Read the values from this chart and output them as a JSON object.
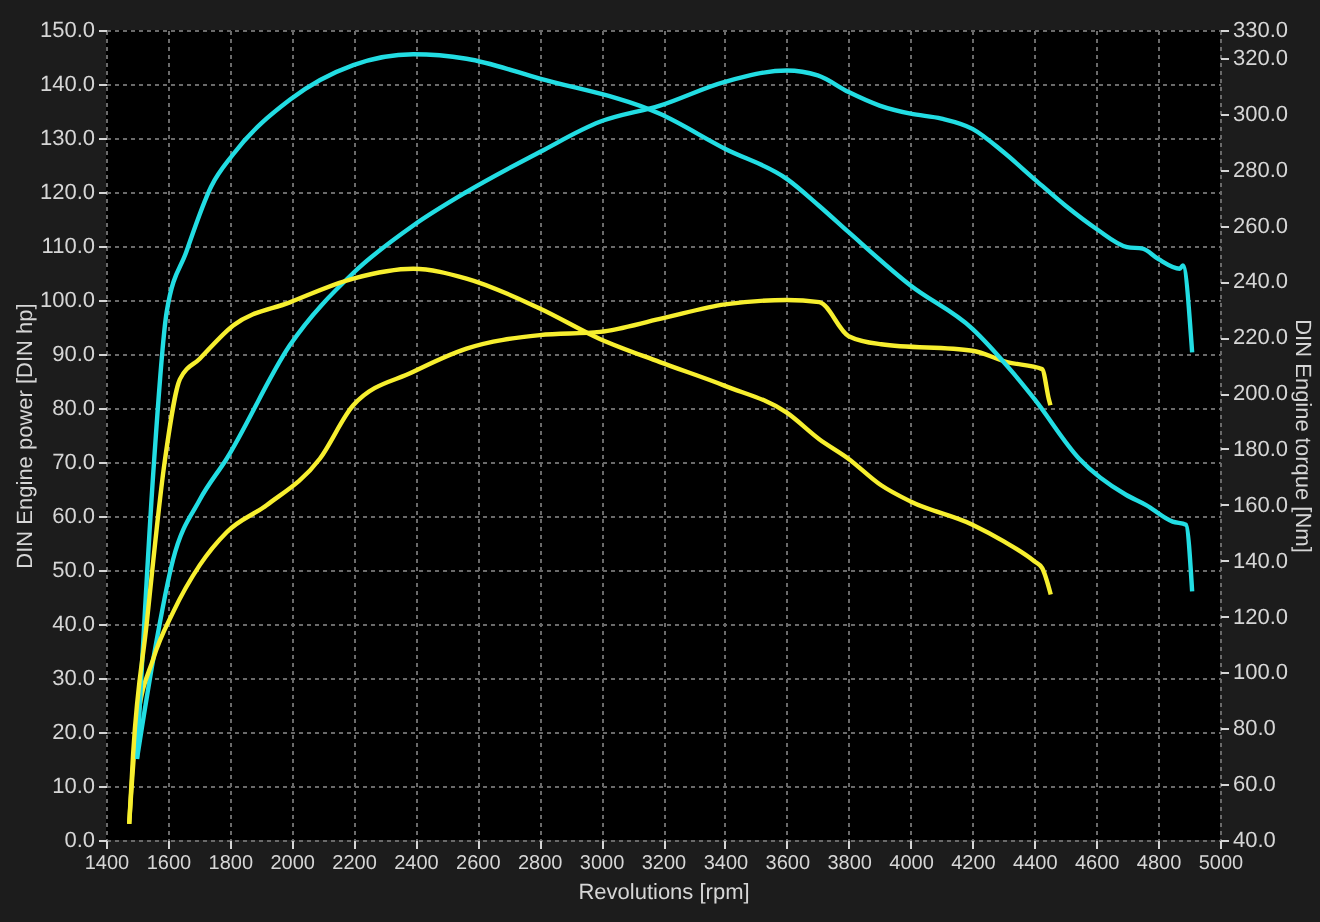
{
  "chart_data": {
    "type": "line",
    "xlabel": "Revolutions [rpm]",
    "ylabel": "DIN Engine power [DIN hp]",
    "y2label": "DIN Engine torque [Nm]",
    "xlim": [
      1400,
      5000
    ],
    "xticks": [
      1400,
      1600,
      1800,
      2000,
      2200,
      2400,
      2600,
      2800,
      3000,
      3200,
      3400,
      3600,
      3800,
      4000,
      4200,
      4400,
      4600,
      4800,
      5000
    ],
    "ylim": [
      0,
      150
    ],
    "yticks": [
      {
        "value": 0,
        "label": "0.0"
      },
      {
        "value": 10,
        "label": "10.0"
      },
      {
        "value": 20,
        "label": "20.0"
      },
      {
        "value": 30,
        "label": "30.0"
      },
      {
        "value": 40,
        "label": "40.0"
      },
      {
        "value": 50,
        "label": "50.0"
      },
      {
        "value": 60,
        "label": "60.0"
      },
      {
        "value": 70,
        "label": "70.0"
      },
      {
        "value": 80,
        "label": "80.0"
      },
      {
        "value": 90,
        "label": "90.0"
      },
      {
        "value": 100,
        "label": "100.0"
      },
      {
        "value": 110,
        "label": "110.0"
      },
      {
        "value": 120,
        "label": "120.0"
      },
      {
        "value": 130,
        "label": "130.0"
      },
      {
        "value": 140,
        "label": "140.0"
      },
      {
        "value": 150,
        "label": "150.0"
      }
    ],
    "y2lim": [
      40,
      330
    ],
    "y2ticks": [
      {
        "value": 40,
        "label": "40.0"
      },
      {
        "value": 60,
        "label": "60.0"
      },
      {
        "value": 80,
        "label": "80.0"
      },
      {
        "value": 100,
        "label": "100.0"
      },
      {
        "value": 120,
        "label": "120.0"
      },
      {
        "value": 140,
        "label": "140.0"
      },
      {
        "value": 160,
        "label": "160.0"
      },
      {
        "value": 180,
        "label": "180.0"
      },
      {
        "value": 200,
        "label": "200.0"
      },
      {
        "value": 220,
        "label": "220.0"
      },
      {
        "value": 240,
        "label": "240.0"
      },
      {
        "value": 260,
        "label": "260.0"
      },
      {
        "value": 280,
        "label": "280.0"
      },
      {
        "value": 300,
        "label": "300.0"
      },
      {
        "value": 320,
        "label": "320.0"
      },
      {
        "value": 330,
        "label": "330.0"
      }
    ],
    "grid": true,
    "series": [
      {
        "color": "#22dde3",
        "x": [
          1500,
          1553,
          1617,
          1703,
          1790,
          1994,
          2199,
          2393,
          2565,
          2802,
          2996,
          3190,
          3400,
          3600,
          3700,
          3800,
          3900,
          4000,
          4100,
          4200,
          4300,
          4400,
          4500,
          4600,
          4700,
          4750,
          4800,
          4870,
          4880,
          4910
        ],
        "values": [
          15,
          33.6,
          52,
          63,
          70.6,
          91.6,
          105,
          113.8,
          120,
          127.4,
          133,
          136,
          140.4,
          142.5,
          141.6,
          138.5,
          136,
          134.5,
          133.6,
          131.7,
          127.4,
          122.4,
          117.5,
          113.2,
          109.8,
          109.5,
          107.6,
          105.8,
          106.4,
          90.3
        ]
      },
      {
        "color": "#22dde3",
        "axis": "y2",
        "x": [
          1500,
          1555,
          1596,
          1660,
          1740,
          1811,
          1994,
          2199,
          2393,
          2565,
          2802,
          3190,
          3400,
          3600,
          3705,
          3800,
          4000,
          4200,
          4330,
          4400,
          4545,
          4696,
          4760,
          4847,
          4890,
          4910
        ],
        "values": [
          69,
          175,
          229,
          250.7,
          274,
          285.5,
          305,
          317.4,
          321.3,
          319.7,
          312.6,
          300,
          287.5,
          276.7,
          267,
          257.6,
          238.5,
          223,
          207.4,
          197.9,
          176.5,
          163.6,
          160,
          154,
          152.9,
          129
        ]
      },
      {
        "color": "#f7ef2f",
        "x": [
          1475,
          1499,
          1553,
          1617,
          1703,
          1790,
          1919,
          2091,
          2199,
          2393,
          2565,
          2802,
          2996,
          3190,
          3400,
          3600,
          3705,
          3800,
          3905,
          4200,
          4312,
          4425,
          4447,
          4452
        ],
        "values": [
          3,
          21.2,
          33.6,
          42.2,
          50.9,
          57,
          62,
          70.6,
          80.5,
          86.7,
          91,
          93.5,
          94.1,
          96.5,
          99.2,
          100,
          99.6,
          93.3,
          91.8,
          90.6,
          88.5,
          87.2,
          81.6,
          80.5
        ]
      },
      {
        "color": "#f7ef2f",
        "axis": "y2",
        "x": [
          1475,
          1488,
          1531,
          1591,
          1639,
          1703,
          1811,
          1994,
          2199,
          2393,
          2565,
          2802,
          2996,
          3190,
          3400,
          3600,
          3705,
          3797,
          3905,
          4000,
          4200,
          4300,
          4400,
          4425,
          4453
        ],
        "values": [
          45.8,
          71.5,
          117,
          176.5,
          205,
          212.3,
          224.2,
          232.5,
          241,
          244.5,
          241,
          230.3,
          219.4,
          211.1,
          202.6,
          193,
          183.5,
          176.7,
          167,
          161.2,
          152.9,
          147,
          139.8,
          137.4,
          127.9
        ]
      }
    ]
  }
}
